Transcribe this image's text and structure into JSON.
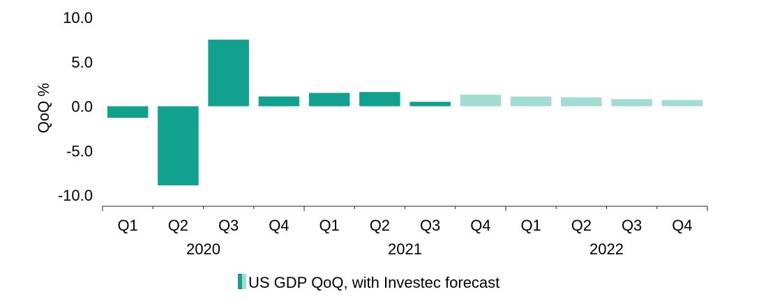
{
  "chart_data": {
    "type": "bar",
    "title": "",
    "xlabel": "",
    "ylabel": "QoQ %",
    "ylim": [
      -10,
      10
    ],
    "yticks": [
      "10.0",
      "5.0",
      "0.0",
      "-5.0",
      "-10.0"
    ],
    "ytick_values": [
      10,
      5,
      0,
      -5,
      -10
    ],
    "categories": [
      "Q1",
      "Q2",
      "Q3",
      "Q4",
      "Q1",
      "Q2",
      "Q3",
      "Q4",
      "Q1",
      "Q2",
      "Q3",
      "Q4"
    ],
    "years": [
      "2020",
      "2021",
      "2022"
    ],
    "values": [
      -1.3,
      -8.9,
      7.5,
      1.1,
      1.5,
      1.6,
      0.5,
      1.3,
      1.1,
      1.0,
      0.8,
      0.7
    ],
    "forecast_from_index": 7,
    "series": [
      {
        "name": "US GDP QoQ, with Investec forecast",
        "values": [
          -1.3,
          -8.9,
          7.5,
          1.1,
          1.5,
          1.6,
          0.5,
          1.3,
          1.1,
          1.0,
          0.8,
          0.7
        ]
      }
    ],
    "legend": {
      "label": "US GDP QoQ, with Investec forecast",
      "placement": "bottom-center"
    },
    "colors": {
      "actual": "#12a08f",
      "forecast": "#a3dcd3"
    }
  }
}
